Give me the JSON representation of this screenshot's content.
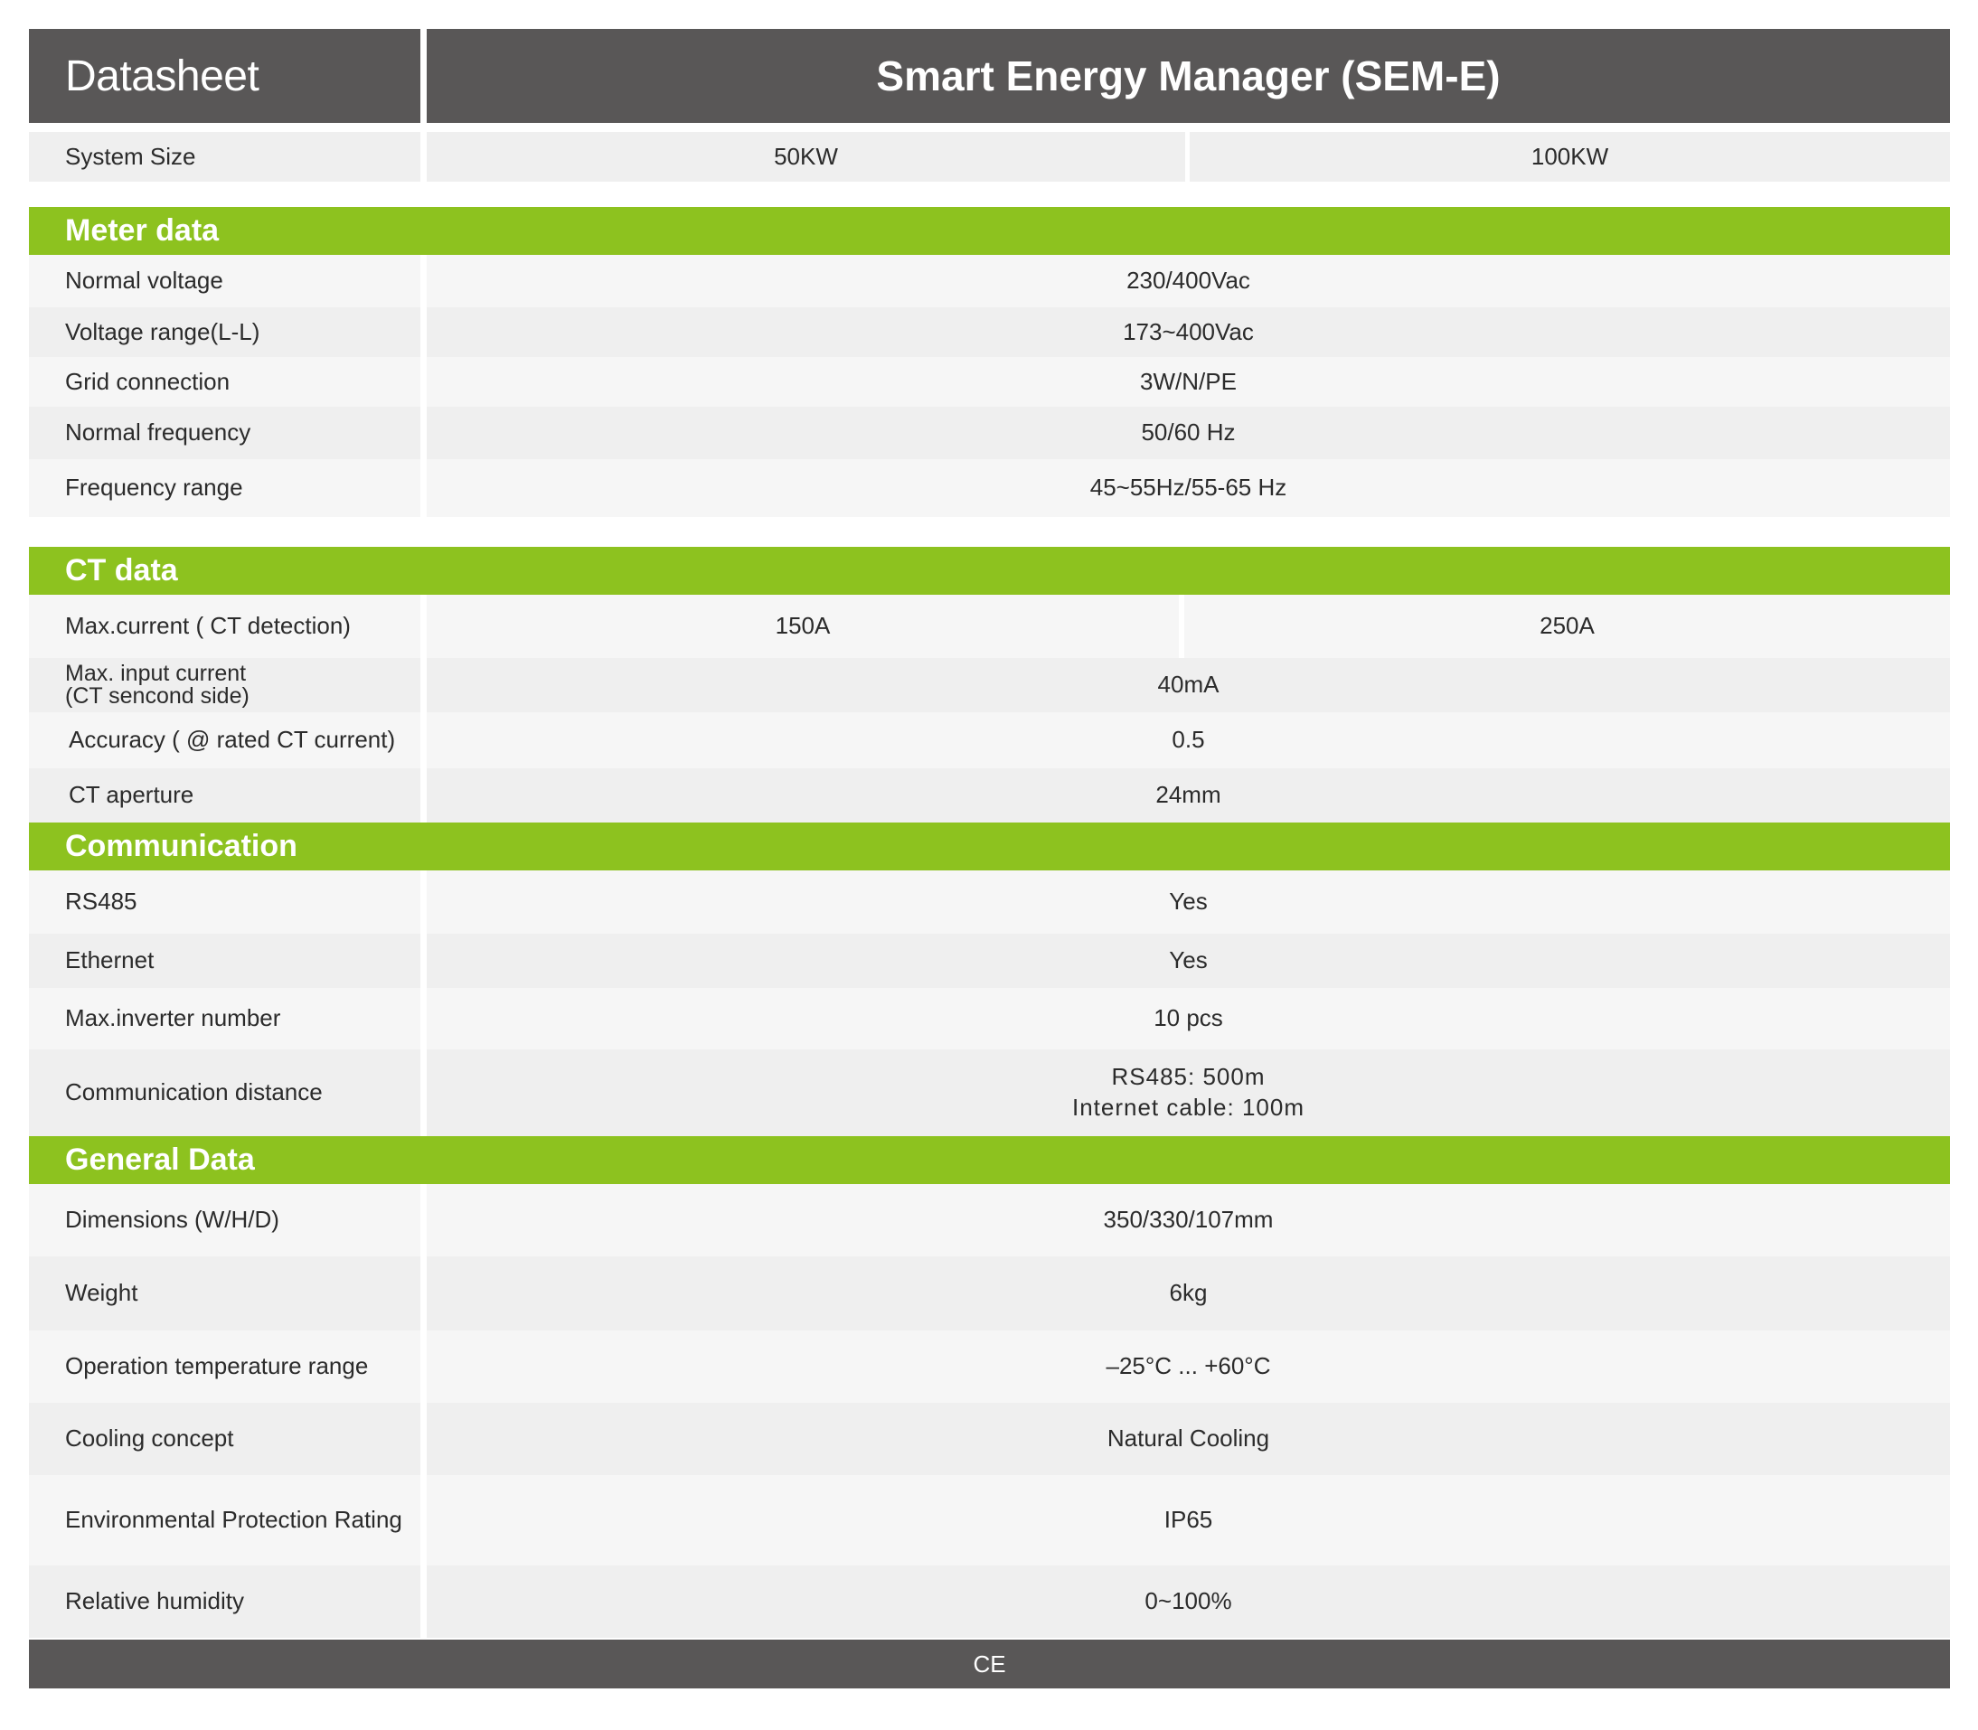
{
  "header": {
    "left_title": "Datasheet",
    "right_title": "Smart Energy Manager (SEM-E)"
  },
  "system_size": {
    "label": "System Size",
    "values": [
      "50KW",
      "100KW"
    ]
  },
  "sections": {
    "meter": {
      "title": "Meter data",
      "rows": [
        {
          "label": "Normal voltage",
          "value": "230/400Vac"
        },
        {
          "label": "Voltage range(L-L)",
          "value": "173~400Vac"
        },
        {
          "label": "Grid connection",
          "value": "3W/N/PE"
        },
        {
          "label": "Normal frequency",
          "value": "50/60 Hz"
        },
        {
          "label": "Frequency range",
          "value": "45~55Hz/55-65 Hz"
        }
      ]
    },
    "ct": {
      "title": "CT data",
      "max_current": {
        "label": "Max.current  ( CT detection)",
        "values": [
          "150A",
          "250A"
        ]
      },
      "rows": [
        {
          "label_line1": "Max. input current",
          "label_line2": "(CT sencond side)",
          "value": "40mA"
        },
        {
          "label": "Accuracy ( @ rated CT current)",
          "value": "0.5"
        },
        {
          "label": "CT aperture",
          "value": "24mm"
        }
      ]
    },
    "communication": {
      "title": "Communication",
      "rows": [
        {
          "label": "RS485",
          "value": "Yes"
        },
        {
          "label": "Ethernet",
          "value": "Yes"
        },
        {
          "label": "Max.inverter number",
          "value": "10 pcs"
        },
        {
          "label": "Communication distance",
          "value_line1": "RS485: 500m",
          "value_line2": "Internet cable: 100m"
        }
      ]
    },
    "general": {
      "title": "General Data",
      "rows": [
        {
          "label": "Dimensions (W/H/D)",
          "value": "350/330/107mm"
        },
        {
          "label": "Weight",
          "value": "6kg"
        },
        {
          "label": "Operation temperature range",
          "value": "–25°C ... +60°C"
        },
        {
          "label": "Cooling concept",
          "value": "Natural Cooling"
        },
        {
          "label": "Environmental Protection Rating",
          "value": "IP65"
        },
        {
          "label": "Relative humidity",
          "value": "0~100%"
        }
      ]
    }
  },
  "footer": {
    "text": "CE"
  }
}
